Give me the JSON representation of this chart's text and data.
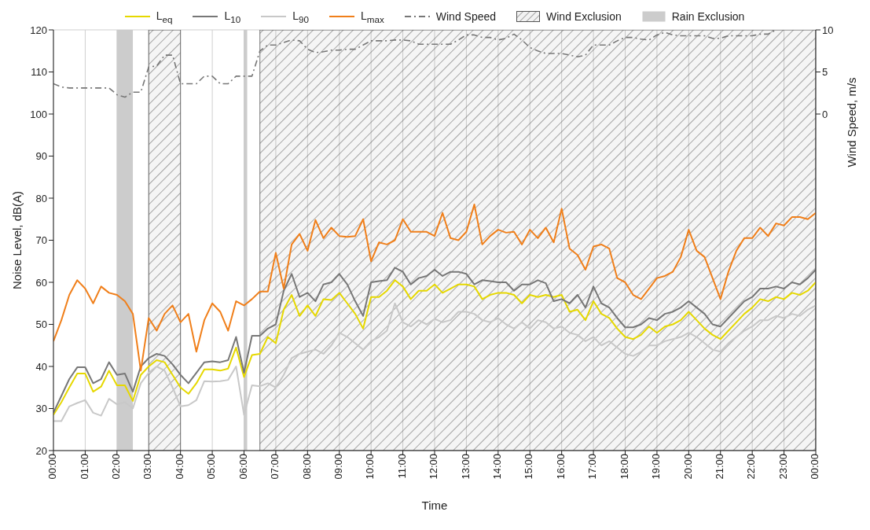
{
  "chart_data": {
    "type": "line",
    "xlabel": "Time",
    "ylabel": "Noise Level, dB(A)",
    "y2label": "Wind Speed, m/s",
    "x": [
      0,
      0.25,
      0.5,
      0.75,
      1,
      1.25,
      1.5,
      1.75,
      2,
      2.25,
      2.5,
      2.75,
      3,
      3.25,
      3.5,
      3.75,
      4,
      4.25,
      4.5,
      4.75,
      5,
      5.25,
      5.5,
      5.75,
      6,
      6.25,
      6.5,
      6.75,
      7,
      7.25,
      7.5,
      7.75,
      8,
      8.25,
      8.5,
      8.75,
      9,
      9.25,
      9.5,
      9.75,
      10,
      10.25,
      10.5,
      10.75,
      11,
      11.25,
      11.5,
      11.75,
      12,
      12.25,
      12.5,
      12.75,
      13,
      13.25,
      13.5,
      13.75,
      14,
      14.25,
      14.5,
      14.75,
      15,
      15.25,
      15.5,
      15.75,
      16,
      16.25,
      16.5,
      16.75,
      17,
      17.25,
      17.5,
      17.75,
      18,
      18.25,
      18.5,
      18.75,
      19,
      19.25,
      19.5,
      19.75,
      20,
      20.25,
      20.5,
      20.75,
      21,
      21.25,
      21.5,
      21.75,
      22,
      22.25,
      22.5,
      22.75,
      23,
      23.25,
      23.5,
      23.75,
      24
    ],
    "series": [
      {
        "name": "L$_{eq}$",
        "color": "#e6d800",
        "values": [
          28.5,
          31.5,
          35,
          38.3,
          38.3,
          34,
          35.2,
          39,
          35.5,
          35.5,
          31.8,
          38,
          40,
          41.5,
          41,
          38,
          35,
          33.5,
          36,
          39.3,
          39.3,
          39,
          39.5,
          44.5,
          37.5,
          42.7,
          43,
          47,
          45.5,
          53.5,
          57,
          52,
          54.5,
          52,
          56,
          55.8,
          57.5,
          55,
          52.5,
          49,
          56.5,
          56.5,
          58,
          60.5,
          59,
          56,
          58,
          58,
          59.5,
          57.5,
          58.5,
          59.5,
          59.5,
          59,
          56,
          57,
          57.5,
          57.5,
          57,
          55,
          57,
          56.5,
          57,
          56.5,
          57,
          53,
          53.5,
          51,
          55.5,
          52.5,
          51.5,
          49,
          47,
          46.5,
          47.5,
          49.5,
          48,
          49.5,
          50,
          51,
          53,
          51,
          49,
          47.5,
          46.5,
          48.5,
          50.5,
          52.5,
          54,
          56,
          55.5,
          56.5,
          56,
          57.5,
          57,
          58,
          60
        ]
      },
      {
        "name": "L$_{10}$",
        "color": "#777777",
        "values": [
          29,
          33,
          37,
          39.8,
          39.8,
          36,
          37,
          41,
          38,
          38.3,
          34,
          40,
          42,
          43,
          42.5,
          40.5,
          38,
          36,
          38.5,
          41,
          41.2,
          41,
          41.5,
          47,
          38.5,
          47.3,
          47.3,
          49,
          50,
          58,
          62,
          56.5,
          57.5,
          55.5,
          59.5,
          60,
          62,
          59.5,
          55.5,
          52,
          60,
          60.3,
          60.5,
          63.5,
          62.5,
          59.5,
          61,
          61.5,
          63,
          61.5,
          62.5,
          62.5,
          62,
          59.5,
          60.5,
          60.3,
          60,
          60,
          58,
          59.5,
          59.5,
          60.5,
          59.8,
          55.5,
          56,
          55,
          57,
          54,
          59,
          55,
          54,
          51.5,
          49.3,
          49.3,
          50,
          51.5,
          51,
          52.5,
          53,
          54,
          55.5,
          54,
          52.5,
          50,
          49.5,
          51.5,
          53.5,
          55.5,
          56.5,
          58.5,
          58.5,
          59,
          58.5,
          60,
          59.5,
          61,
          63
        ]
      },
      {
        "name": "L$_{90}$",
        "color": "#c8c8c8",
        "values": [
          27,
          27,
          30.5,
          31.3,
          32,
          29,
          28.3,
          32.3,
          31,
          31.5,
          30,
          36,
          38.5,
          40,
          39,
          35,
          30.5,
          30.8,
          32,
          36.5,
          36.4,
          36.5,
          36.8,
          40,
          28.5,
          35.5,
          35.3,
          36,
          35,
          38,
          42,
          43,
          43.5,
          44,
          43,
          45,
          48,
          47,
          45.5,
          44,
          46,
          47,
          48.5,
          55,
          50.5,
          49.5,
          51,
          50,
          51.3,
          50.5,
          51,
          53,
          53,
          52.5,
          51,
          50.5,
          51.5,
          50,
          49,
          50.5,
          49,
          51,
          50.5,
          49,
          49.5,
          48,
          47.5,
          46,
          47,
          45,
          46,
          44.5,
          43,
          42.5,
          43.5,
          45,
          45,
          46,
          46.5,
          47,
          48,
          47,
          45.5,
          44,
          43.5,
          45.5,
          47,
          48.5,
          49.5,
          51,
          51,
          52,
          51.5,
          52.5,
          52,
          53.5,
          54.5
        ]
      },
      {
        "name": "L$_{max}$",
        "color": "#f07f1a",
        "values": [
          46,
          51,
          57,
          60.5,
          58.5,
          55,
          59,
          57.5,
          57,
          55.5,
          52.5,
          39,
          51.5,
          48.5,
          52.5,
          54.5,
          50.5,
          52.5,
          43.5,
          51,
          55,
          53,
          48.5,
          55.5,
          54.5,
          56,
          57.8,
          57.8,
          67,
          58.5,
          69,
          71.5,
          67.5,
          74.8,
          70.5,
          73,
          71,
          70.8,
          71,
          75,
          65,
          69.5,
          69,
          70,
          75,
          72,
          72,
          72,
          71,
          76.5,
          70.5,
          70,
          72,
          78.5,
          69,
          71,
          72.5,
          71.8,
          72,
          69,
          72.5,
          70.5,
          73,
          69.5,
          77.5,
          68,
          66.5,
          63,
          68.5,
          69,
          68,
          61,
          60,
          57,
          56,
          58.5,
          61,
          61.5,
          62.5,
          66,
          72.5,
          67.5,
          66,
          61,
          56,
          62.5,
          67.5,
          70.5,
          70.5,
          73,
          71,
          74,
          73.5,
          75.5,
          75.5,
          75,
          76.5
        ]
      },
      {
        "name": "Wind Speed",
        "color": "#777777",
        "axis": "y2",
        "line_style": "dashed",
        "values": [
          3.6,
          3.2,
          3.1,
          3.1,
          3.1,
          3.1,
          3.1,
          3.1,
          2.3,
          2.0,
          2.6,
          2.6,
          5.6,
          5.7,
          7.0,
          7.0,
          3.6,
          3.6,
          3.6,
          4.5,
          4.5,
          3.6,
          3.6,
          4.5,
          4.5,
          4.5,
          7.5,
          8.2,
          8.2,
          8.5,
          8.8,
          8.7,
          7.7,
          7.3,
          7.4,
          7.6,
          7.6,
          7.7,
          7.7,
          8.2,
          8.7,
          8.7,
          8.7,
          8.8,
          8.8,
          8.7,
          8.3,
          8.3,
          8.3,
          8.3,
          8.3,
          8.8,
          9.4,
          9.4,
          9.1,
          9.1,
          8.8,
          9.0,
          9.5,
          8.8,
          7.9,
          7.5,
          7.2,
          7.2,
          7.2,
          7.0,
          6.8,
          7.0,
          8.2,
          8.2,
          8.2,
          8.7,
          9.1,
          9.1,
          8.9,
          8.8,
          9.4,
          9.7,
          9.4,
          9.3,
          9.3,
          9.3,
          9.3,
          9.0,
          9.0,
          9.3,
          9.3,
          9.3,
          9.3,
          9.5,
          9.5,
          10.0,
          null,
          null,
          null,
          null,
          null
        ]
      }
    ],
    "bands": [
      {
        "axis": "x",
        "from": 3,
        "to": 4,
        "label": "Wind Exclusion",
        "color": "#555555"
      },
      {
        "axis": "x",
        "from": 6.5,
        "to": 24,
        "color": "#555555"
      },
      {
        "axis": "x",
        "from": 2,
        "to": 2.5,
        "label": "Rain Exclusion",
        "color": "#cccccc"
      },
      {
        "axis": "x",
        "from": 6,
        "to": 6.1,
        "color": "#cccccc"
      }
    ],
    "xlim": [
      0,
      24
    ],
    "xticks": [
      {
        "value": 0,
        "label": "00:00"
      },
      {
        "value": 1,
        "label": "01:00"
      },
      {
        "value": 2,
        "label": "02:00"
      },
      {
        "value": 3,
        "label": "03:00"
      },
      {
        "value": 4,
        "label": "04:00"
      },
      {
        "value": 5,
        "label": "05:00"
      },
      {
        "value": 6,
        "label": "06:00"
      },
      {
        "value": 7,
        "label": "07:00"
      },
      {
        "value": 8,
        "label": "08:00"
      },
      {
        "value": 9,
        "label": "09:00"
      },
      {
        "value": 10,
        "label": "10:00"
      },
      {
        "value": 11,
        "label": "11:00"
      },
      {
        "value": 12,
        "label": "12:00"
      },
      {
        "value": 13,
        "label": "13:00"
      },
      {
        "value": 14,
        "label": "14:00"
      },
      {
        "value": 15,
        "label": "15:00"
      },
      {
        "value": 16,
        "label": "16:00"
      },
      {
        "value": 17,
        "label": "17:00"
      },
      {
        "value": 18,
        "label": "18:00"
      },
      {
        "value": 19,
        "label": "19:00"
      },
      {
        "value": 20,
        "label": "20:00"
      },
      {
        "value": 21,
        "label": "21:00"
      },
      {
        "value": 22,
        "label": "22:00"
      },
      {
        "value": 23,
        "label": "23:00"
      },
      {
        "value": 24,
        "label": "00:00"
      }
    ],
    "ylim": [
      20,
      120
    ],
    "yticks": [
      20,
      30,
      40,
      50,
      60,
      70,
      80,
      90,
      100,
      110,
      120
    ],
    "y2lim": [
      -40,
      10
    ],
    "y2ticks": [
      0,
      5,
      10
    ],
    "grid": true,
    "legend": "top",
    "marker": "none"
  }
}
